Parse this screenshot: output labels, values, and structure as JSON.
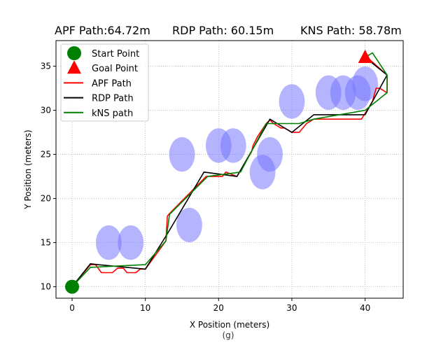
{
  "titles": {
    "apf": "APF Path:64.72m",
    "rdp": "RDP Path: 60.15m",
    "kns": "KNS Path: 58.78m"
  },
  "caption": "(g)",
  "chart_data": {
    "type": "line",
    "xlabel": "X Position (meters)",
    "ylabel": "Y Position (meters)",
    "xlim": [
      -2.2,
      45.2
    ],
    "ylim": [
      8.7,
      37.9
    ],
    "xticks": [
      0,
      10,
      20,
      30,
      40
    ],
    "yticks": [
      10,
      15,
      20,
      25,
      30,
      35
    ],
    "grid": true,
    "grid_style": "dotted",
    "legend_position": "top-left",
    "legend": [
      {
        "label": "Start Point",
        "kind": "circle",
        "color": "#008000"
      },
      {
        "label": "Goal Point",
        "kind": "triangle",
        "color": "#ff0000"
      },
      {
        "label": "APF Path",
        "kind": "line",
        "color": "#ff0000"
      },
      {
        "label": "RDP Path",
        "kind": "line",
        "color": "#000000"
      },
      {
        "label": "kNS path",
        "kind": "line",
        "color": "#008000"
      }
    ],
    "start": {
      "x": 0,
      "y": 10,
      "color": "#008000"
    },
    "goal": {
      "x": 40,
      "y": 36,
      "color": "#ff0000"
    },
    "obstacles": {
      "color": "#7777ff",
      "rx": 2.0,
      "ry": 2.0,
      "centers": [
        {
          "x": 5,
          "y": 15
        },
        {
          "x": 8,
          "y": 15
        },
        {
          "x": 16,
          "y": 17
        },
        {
          "x": 15,
          "y": 25
        },
        {
          "x": 20,
          "y": 26
        },
        {
          "x": 22,
          "y": 26
        },
        {
          "x": 26,
          "y": 23
        },
        {
          "x": 27,
          "y": 25
        },
        {
          "x": 30,
          "y": 31
        },
        {
          "x": 35,
          "y": 32
        },
        {
          "x": 37,
          "y": 32
        },
        {
          "x": 39,
          "y": 32
        },
        {
          "x": 40,
          "y": 33
        }
      ]
    },
    "series": [
      {
        "name": "APF Path",
        "color": "#ff0000",
        "points": [
          [
            0,
            10
          ],
          [
            2.5,
            12.5
          ],
          [
            3.2,
            12.5
          ],
          [
            4,
            11.6
          ],
          [
            5.5,
            11.6
          ],
          [
            6.2,
            12.1
          ],
          [
            7,
            12.1
          ],
          [
            7.5,
            11.6
          ],
          [
            8.7,
            11.6
          ],
          [
            9.3,
            12.0
          ],
          [
            10,
            12.0
          ],
          [
            12.8,
            15.2
          ],
          [
            13,
            18.0
          ],
          [
            13.3,
            18.3
          ],
          [
            18.3,
            22.5
          ],
          [
            20.5,
            22.5
          ],
          [
            21,
            23.0
          ],
          [
            22.5,
            22.5
          ],
          [
            24.5,
            25.3
          ],
          [
            24.7,
            26.0
          ],
          [
            25.3,
            27.0
          ],
          [
            26.5,
            28.5
          ],
          [
            27,
            28.9
          ],
          [
            27.5,
            28.5
          ],
          [
            28.5,
            28.0
          ],
          [
            29,
            28.0
          ],
          [
            30,
            27.5
          ],
          [
            31,
            27.5
          ],
          [
            32,
            28.5
          ],
          [
            33,
            29.0
          ],
          [
            39.5,
            29.0
          ],
          [
            41,
            31.0
          ],
          [
            41.5,
            32.5
          ],
          [
            42,
            32.5
          ],
          [
            43,
            32.0
          ],
          [
            43,
            34.0
          ],
          [
            40,
            36.2
          ]
        ]
      },
      {
        "name": "RDP Path",
        "color": "#000000",
        "points": [
          [
            0,
            10
          ],
          [
            2.5,
            12.6
          ],
          [
            3.5,
            12.5
          ],
          [
            10,
            12.0
          ],
          [
            13,
            16.0
          ],
          [
            18,
            23.0
          ],
          [
            22.5,
            22.5
          ],
          [
            27,
            29.0
          ],
          [
            28,
            28.5
          ],
          [
            30,
            27.5
          ],
          [
            33,
            29.5
          ],
          [
            40,
            29.5
          ],
          [
            43,
            34.0
          ],
          [
            40,
            36.0
          ]
        ]
      },
      {
        "name": "kNS path",
        "color": "#008000",
        "points": [
          [
            0,
            10
          ],
          [
            2.5,
            12.2
          ],
          [
            10,
            12.5
          ],
          [
            12.8,
            15.2
          ],
          [
            13.3,
            18.2
          ],
          [
            18.5,
            22.5
          ],
          [
            23,
            23.0
          ],
          [
            26.5,
            28.5
          ],
          [
            31,
            28.5
          ],
          [
            33,
            29.0
          ],
          [
            40,
            30.0
          ],
          [
            43,
            32.0
          ],
          [
            43,
            34.0
          ],
          [
            41,
            36.5
          ],
          [
            40,
            36.0
          ]
        ]
      }
    ]
  }
}
